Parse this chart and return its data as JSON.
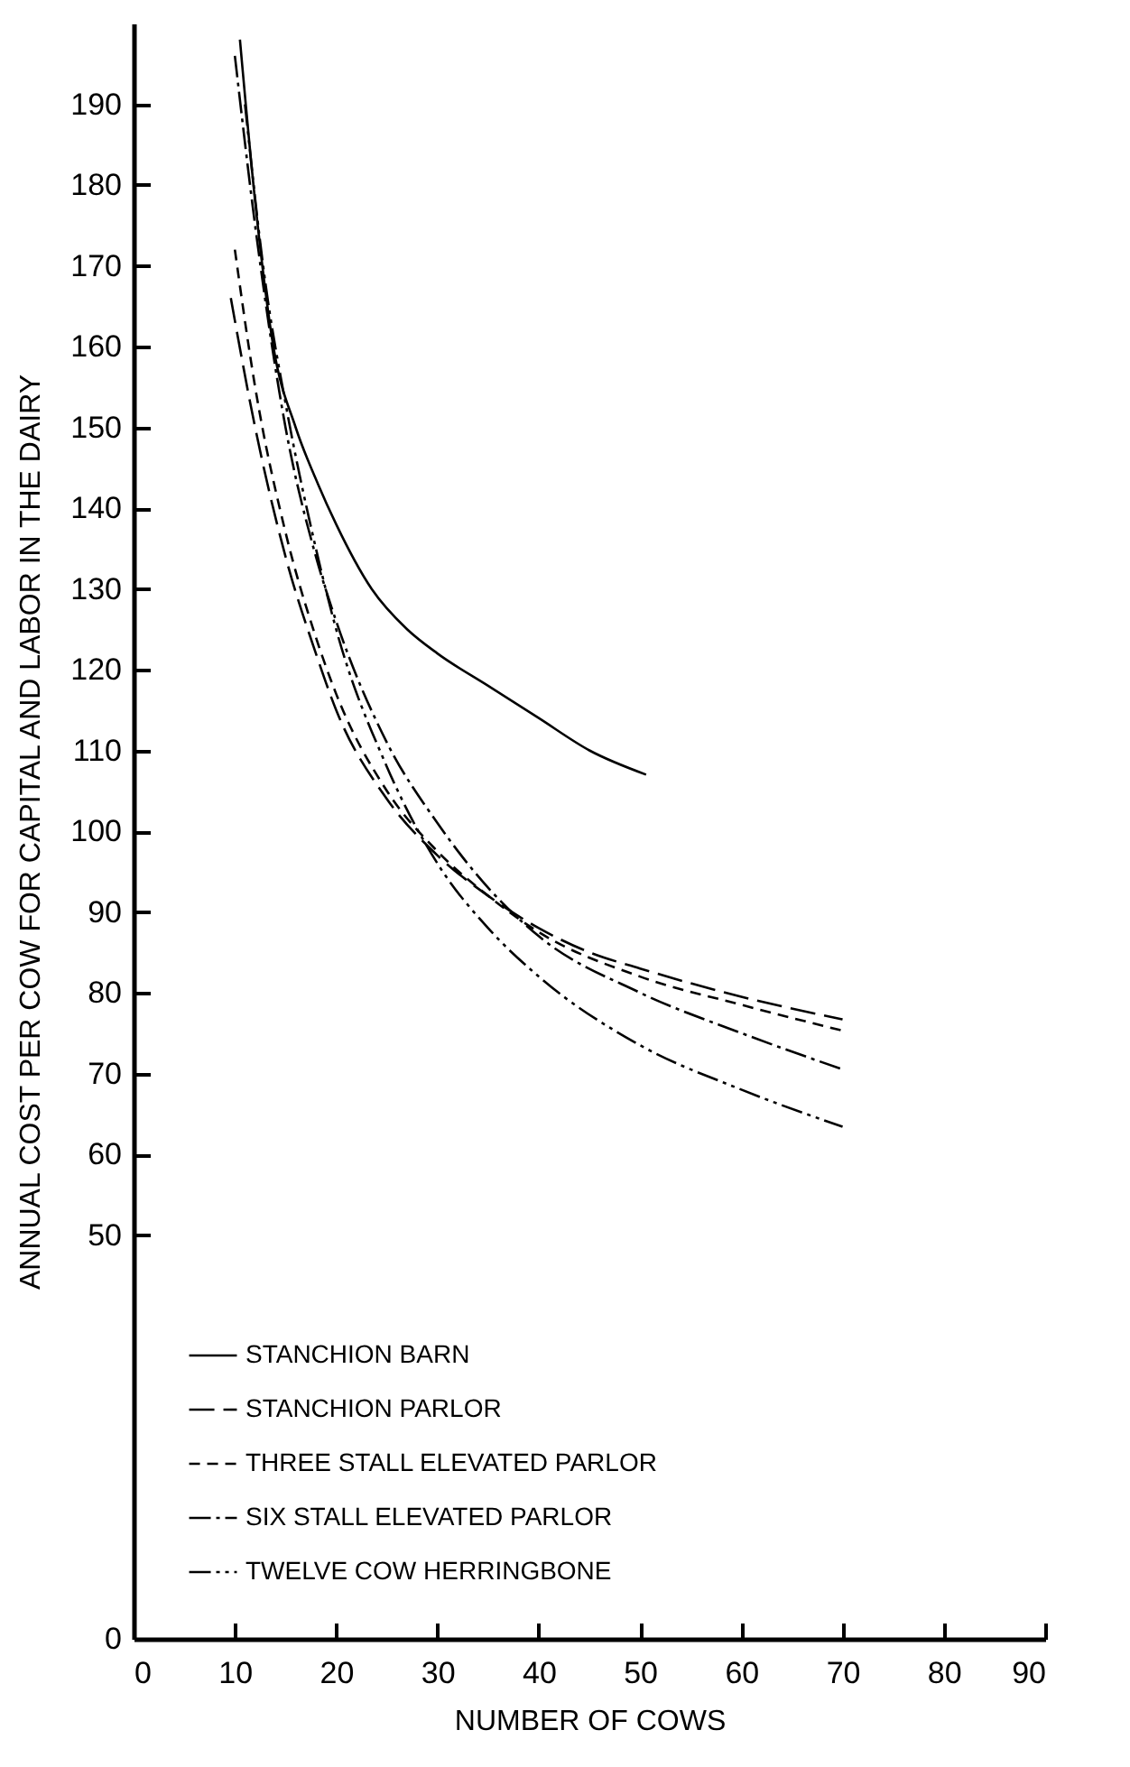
{
  "chart_data": {
    "type": "line",
    "xlabel": "NUMBER OF COWS",
    "ylabel": "ANNUAL COST PER COW FOR CAPITAL AND LABOR IN THE DAIRY",
    "xlim": [
      0,
      90
    ],
    "xticks": [
      0,
      10,
      20,
      30,
      40,
      50,
      60,
      70,
      80,
      90
    ],
    "ylim": [
      0,
      200
    ],
    "yticks": [
      0,
      50,
      60,
      70,
      80,
      90,
      100,
      110,
      120,
      130,
      140,
      150,
      160,
      170,
      180,
      190
    ],
    "grid": false,
    "legend": "bottom left",
    "marker": "none",
    "series": [
      {
        "name": "STANCHION BARN",
        "color": "#000000",
        "line_style": "solid",
        "x": [
          10.5,
          12,
          13.8,
          16,
          18.2,
          20,
          23.5,
          27,
          30,
          35,
          40,
          45,
          50.6
        ],
        "values": [
          198,
          178,
          160,
          150,
          143,
          138,
          130,
          125,
          122,
          118,
          114,
          110,
          107
        ]
      },
      {
        "name": "STANCHION PARLOR",
        "color": "#000000",
        "line_style": "longdash",
        "x": [
          9.6,
          12,
          15,
          18,
          20,
          25,
          30,
          35,
          40,
          45,
          50,
          60,
          70
        ],
        "values": [
          166,
          150,
          134,
          122,
          115,
          104,
          97,
          92,
          88,
          85,
          83,
          79.5,
          76.7
        ]
      },
      {
        "name": "THREE STALL ELEVATED PARLOR",
        "color": "#000000",
        "line_style": "dashed",
        "x": [
          10,
          12,
          15,
          18,
          20,
          25,
          30,
          35,
          40,
          50,
          60,
          70
        ],
        "values": [
          172,
          155,
          137,
          124,
          117,
          105,
          97.5,
          92,
          87.5,
          82,
          78.5,
          75.3
        ]
      },
      {
        "name": "SIX STALL ELEVATED PARLOR",
        "color": "#000000",
        "line_style": "dashdot",
        "x": [
          10,
          12,
          15,
          18,
          20,
          25,
          30,
          35,
          40,
          50,
          60,
          70
        ],
        "values": [
          196,
          175,
          150,
          134,
          126,
          111,
          101,
          93,
          87,
          80,
          75,
          70.5
        ]
      },
      {
        "name": "TWELVE COW HERRINGBONE",
        "color": "#000000",
        "line_style": "dashdotdot",
        "x": [
          11,
          13,
          15,
          18,
          20,
          25,
          30,
          35,
          40,
          50,
          60,
          70
        ],
        "values": [
          190,
          168,
          153,
          135,
          125,
          108,
          96,
          88,
          82,
          73.5,
          68,
          63.4
        ]
      }
    ]
  }
}
